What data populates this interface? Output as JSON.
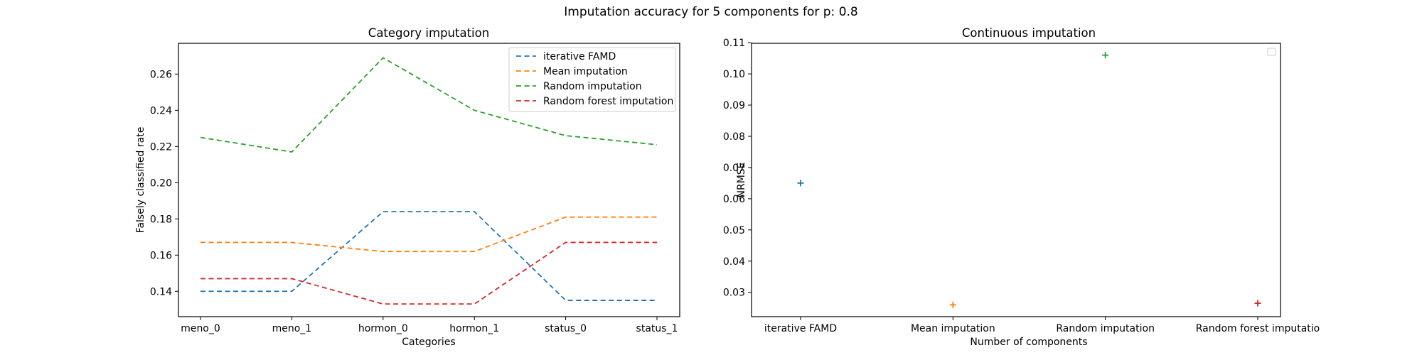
{
  "figure": {
    "suptitle": "Imputation accuracy for 5 components for p: 0.8"
  },
  "chart_data": [
    {
      "type": "line",
      "title": "Category imputation",
      "xlabel": "Categories",
      "ylabel": "Falsely classified rate",
      "categories": [
        "meno_0",
        "meno_1",
        "hormon_0",
        "hormon_1",
        "status_0",
        "status_1"
      ],
      "ylim": [
        0.126,
        0.277
      ],
      "yticks": [
        0.14,
        0.16,
        0.18,
        0.2,
        0.22,
        0.24,
        0.26
      ],
      "ytick_labels": [
        "0.14",
        "0.16",
        "0.18",
        "0.20",
        "0.22",
        "0.24",
        "0.26"
      ],
      "line_style": "dashed",
      "legend_position": "top-right",
      "series": [
        {
          "name": "iterative FAMD",
          "color": "#1f77b4",
          "values": [
            0.14,
            0.14,
            0.184,
            0.184,
            0.135,
            0.135
          ]
        },
        {
          "name": "Mean imputation",
          "color": "#ff7f0e",
          "values": [
            0.167,
            0.167,
            0.162,
            0.162,
            0.181,
            0.181
          ]
        },
        {
          "name": "Random imputation",
          "color": "#2ca02c",
          "values": [
            0.225,
            0.217,
            0.269,
            0.24,
            0.226,
            0.221
          ]
        },
        {
          "name": "Random forest imputation",
          "color": "#d62728",
          "values": [
            0.147,
            0.147,
            0.133,
            0.133,
            0.167,
            0.167
          ]
        }
      ]
    },
    {
      "type": "scatter",
      "title": "Continuous imputation",
      "xlabel": "Number of components",
      "ylabel": "NRMSE",
      "categories": [
        "iterative FAMD",
        "Mean imputation",
        "Random imputation",
        "Random forest imputatio"
      ],
      "ylim": [
        0.0222,
        0.1098
      ],
      "yticks": [
        0.03,
        0.04,
        0.05,
        0.06,
        0.07,
        0.08,
        0.09,
        0.1,
        0.11
      ],
      "ytick_labels": [
        "0.03",
        "0.04",
        "0.05",
        "0.06",
        "0.07",
        "0.08",
        "0.09",
        "0.10",
        "0.11"
      ],
      "marker": "+",
      "legend_position": "top-right",
      "legend_empty": true,
      "series": [
        {
          "color": "#1f77b4",
          "x": "iterative FAMD",
          "value": 0.065
        },
        {
          "color": "#ff7f0e",
          "x": "Mean imputation",
          "value": 0.026
        },
        {
          "color": "#2ca02c",
          "x": "Random imputation",
          "value": 0.106
        },
        {
          "color": "#d62728",
          "x": "Random forest imputatio",
          "value": 0.0265
        }
      ]
    }
  ]
}
